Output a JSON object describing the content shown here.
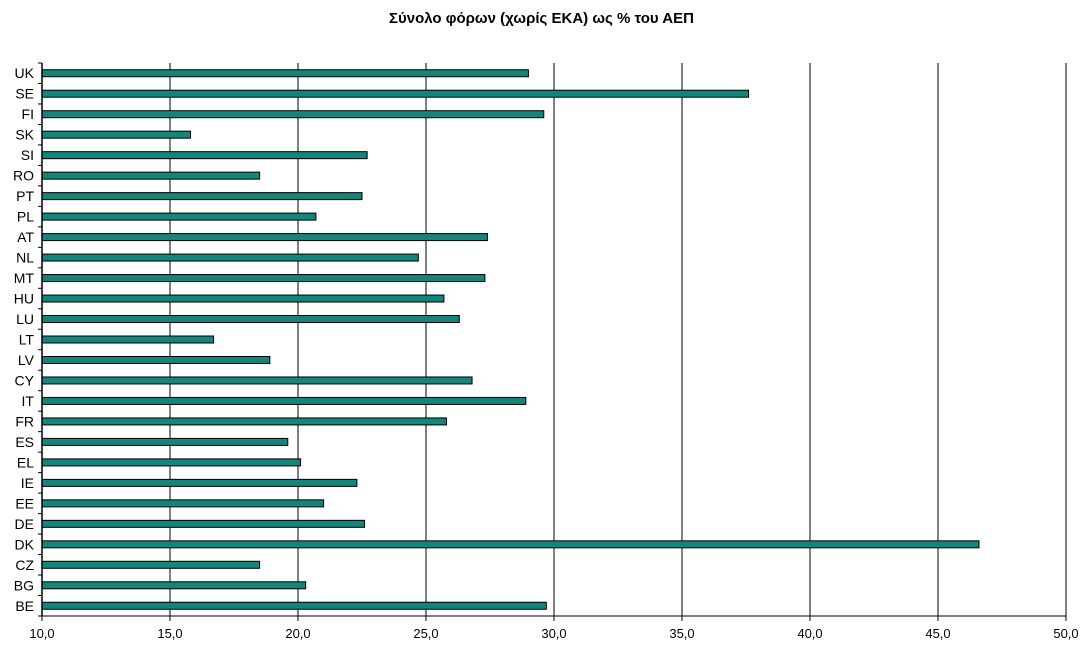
{
  "chart_data": {
    "type": "bar",
    "orientation": "horizontal",
    "title": "Σύνολο φόρων (χωρίς ΕΚΑ) ως % του ΑΕΠ",
    "xlabel": "",
    "ylabel": "",
    "xlim": [
      10.0,
      50.0
    ],
    "x_ticks": [
      "10,0",
      "15,0",
      "20,0",
      "25,0",
      "30,0",
      "35,0",
      "40,0",
      "45,0",
      "50,0"
    ],
    "grid": "vertical",
    "bar_color": "#14857a",
    "bar_edge_color": "#000000",
    "categories": [
      "UK",
      "SE",
      "FI",
      "SK",
      "SI",
      "RO",
      "PT",
      "PL",
      "AT",
      "NL",
      "MT",
      "HU",
      "LU",
      "LT",
      "LV",
      "CY",
      "IT",
      "FR",
      "ES",
      "EL",
      "IE",
      "EE",
      "DE",
      "DK",
      "CZ",
      "BG",
      "BE"
    ],
    "values": [
      29.0,
      37.6,
      29.6,
      15.8,
      22.7,
      18.5,
      22.5,
      20.7,
      27.4,
      24.7,
      27.3,
      25.7,
      26.3,
      16.7,
      18.9,
      26.8,
      28.9,
      25.8,
      19.6,
      20.1,
      22.3,
      21.0,
      22.6,
      46.6,
      18.5,
      20.3,
      29.7
    ]
  }
}
